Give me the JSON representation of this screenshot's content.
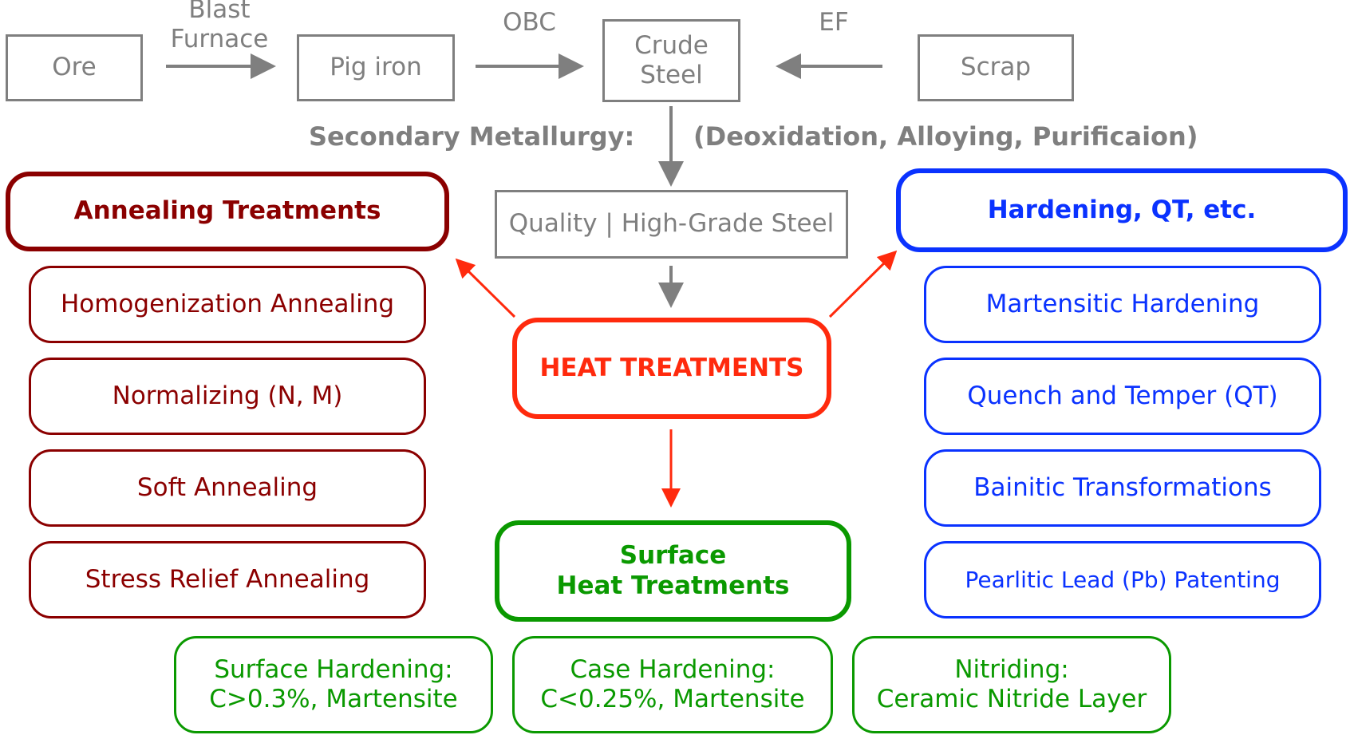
{
  "process": {
    "ore": "Ore",
    "blast_furnace": "Blast\nFurnace",
    "pig_iron": "Pig iron",
    "obc": "OBC",
    "crude_steel": "Crude\nSteel",
    "ef": "EF",
    "scrap": "Scrap",
    "secondary_label": "Secondary Metallurgy:",
    "secondary_detail": "(Deoxidation, Alloying, Purificaion)",
    "quality_steel": "Quality | High-Grade Steel"
  },
  "heat_treatments": "HEAT TREATMENTS",
  "annealing": {
    "title": "Annealing Treatments",
    "items": [
      "Homogenization Annealing",
      "Normalizing (N, M)",
      "Soft Annealing",
      "Stress Relief Annealing"
    ]
  },
  "hardening": {
    "title": "Hardening, QT, etc.",
    "items": [
      "Martensitic Hardening",
      "Quench and Temper (QT)",
      "Bainitic Transformations",
      "Pearlitic Lead (Pb) Patenting"
    ]
  },
  "surface": {
    "title": "Surface\nHeat Treatments",
    "items": [
      "Surface Hardening:\nC>0.3%, Martensite",
      "Case Hardening:\nC<0.25%, Martensite",
      "Nitriding:\nCeramic Nitride Layer"
    ]
  },
  "colors": {
    "process_gray": "#7f7f7f",
    "annealing": "#8b0000",
    "hardening": "#0a32ff",
    "heat": "#ff2a0d",
    "surface": "#0a9900"
  }
}
